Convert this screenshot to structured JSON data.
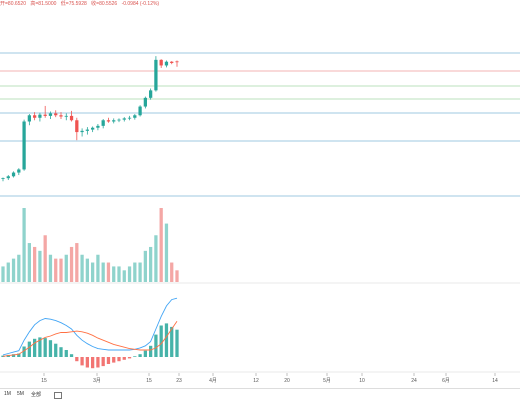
{
  "ohlc": {
    "open": "开=80.6520",
    "high": "高=81.5000",
    "low": "低=75.5928",
    "close": "收=80.5526",
    "change": "-0.0984 (-0.12%)"
  },
  "timeframes": [
    "1M",
    "5M",
    "全部"
  ],
  "colors": {
    "up": "#26a69a",
    "down": "#ef5350",
    "vol_up": "#8fd3cc",
    "vol_down": "#f4a7a5",
    "macd_line": "#42a5f5",
    "signal_line": "#ff7043"
  },
  "chart_data": [
    {
      "type": "candlestick",
      "x_tick_labels": [
        "15",
        "3月",
        "15",
        "23",
        "4月",
        "12",
        "20",
        "5月",
        "10",
        "24",
        "6月",
        "14"
      ],
      "horizontal_levels": [
        "blue",
        "red",
        "green",
        "blue",
        "blue",
        "blue"
      ],
      "candles": [
        {
          "o": 61.8,
          "h": 62.0,
          "l": 61.4,
          "c": 61.9
        },
        {
          "o": 61.9,
          "h": 62.4,
          "l": 61.6,
          "c": 62.2
        },
        {
          "o": 62.2,
          "h": 63.0,
          "l": 62.0,
          "c": 62.8
        },
        {
          "o": 62.8,
          "h": 63.5,
          "l": 62.4,
          "c": 63.3
        },
        {
          "o": 63.3,
          "h": 71.3,
          "l": 63.1,
          "c": 71.0
        },
        {
          "o": 71.0,
          "h": 72.2,
          "l": 70.4,
          "c": 72.0
        },
        {
          "o": 72.0,
          "h": 72.5,
          "l": 71.2,
          "c": 71.6
        },
        {
          "o": 71.6,
          "h": 72.4,
          "l": 71.0,
          "c": 72.1
        },
        {
          "o": 72.1,
          "h": 73.5,
          "l": 71.6,
          "c": 71.9
        },
        {
          "o": 71.9,
          "h": 72.6,
          "l": 71.4,
          "c": 72.3
        },
        {
          "o": 72.3,
          "h": 72.8,
          "l": 71.7,
          "c": 72.0
        },
        {
          "o": 72.0,
          "h": 72.5,
          "l": 71.4,
          "c": 71.8
        },
        {
          "o": 71.8,
          "h": 72.3,
          "l": 71.2,
          "c": 71.9
        },
        {
          "o": 71.9,
          "h": 72.7,
          "l": 71.0,
          "c": 71.2
        },
        {
          "o": 71.2,
          "h": 71.6,
          "l": 68.0,
          "c": 69.3
        },
        {
          "o": 69.3,
          "h": 69.9,
          "l": 68.6,
          "c": 69.5
        },
        {
          "o": 69.5,
          "h": 70.1,
          "l": 68.9,
          "c": 69.7
        },
        {
          "o": 69.7,
          "h": 70.2,
          "l": 69.3,
          "c": 70.0
        },
        {
          "o": 70.0,
          "h": 70.6,
          "l": 69.6,
          "c": 70.3
        },
        {
          "o": 70.3,
          "h": 71.4,
          "l": 69.9,
          "c": 71.2
        },
        {
          "o": 71.2,
          "h": 71.6,
          "l": 70.8,
          "c": 71.0
        },
        {
          "o": 71.0,
          "h": 71.5,
          "l": 70.7,
          "c": 71.2
        },
        {
          "o": 71.2,
          "h": 71.5,
          "l": 70.9,
          "c": 71.3
        },
        {
          "o": 71.3,
          "h": 71.7,
          "l": 71.0,
          "c": 71.5
        },
        {
          "o": 71.5,
          "h": 71.9,
          "l": 71.2,
          "c": 71.6
        },
        {
          "o": 71.6,
          "h": 72.2,
          "l": 71.3,
          "c": 72.0
        },
        {
          "o": 72.0,
          "h": 73.6,
          "l": 71.8,
          "c": 73.4
        },
        {
          "o": 73.4,
          "h": 75.0,
          "l": 73.1,
          "c": 74.8
        },
        {
          "o": 74.8,
          "h": 76.3,
          "l": 74.5,
          "c": 76.0
        },
        {
          "o": 76.0,
          "h": 81.5,
          "l": 75.8,
          "c": 80.9
        },
        {
          "o": 80.9,
          "h": 81.0,
          "l": 79.6,
          "c": 80.0
        },
        {
          "o": 80.0,
          "h": 80.8,
          "l": 79.7,
          "c": 80.6
        },
        {
          "o": 80.6,
          "h": 80.7,
          "l": 80.2,
          "c": 80.4
        },
        {
          "o": 80.65,
          "h": 80.8,
          "l": 79.8,
          "c": 80.55
        }
      ],
      "volume": [
        4,
        5,
        6,
        7,
        19,
        10,
        9,
        8,
        12,
        7,
        6,
        6,
        7,
        9,
        10,
        7,
        6,
        5,
        7,
        5,
        5,
        4,
        4,
        3,
        4,
        5,
        5,
        8,
        9,
        12,
        19,
        15,
        5,
        3
      ],
      "macd": {
        "histogram": [
          0.2,
          0.3,
          0.4,
          0.5,
          1.5,
          2.2,
          2.6,
          2.8,
          2.7,
          2.4,
          1.9,
          1.4,
          1.0,
          0.4,
          -0.6,
          -1.2,
          -1.5,
          -1.6,
          -1.5,
          -1.3,
          -1.0,
          -0.8,
          -0.6,
          -0.4,
          -0.2,
          0.1,
          0.4,
          0.9,
          1.6,
          3.2,
          4.5,
          4.8,
          4.3,
          3.9
        ],
        "macd_line": [
          0.3,
          0.5,
          0.7,
          0.9,
          2.4,
          3.6,
          4.6,
          5.2,
          5.5,
          5.4,
          5.2,
          4.9,
          4.5,
          4.0,
          3.1,
          2.4,
          1.9,
          1.5,
          1.2,
          1.1,
          1.0,
          1.0,
          1.0,
          1.0,
          1.0,
          1.1,
          1.3,
          1.6,
          2.2,
          4.0,
          5.8,
          7.3,
          8.2,
          8.4
        ],
        "signal_line": [
          0.1,
          0.2,
          0.3,
          0.4,
          0.9,
          1.4,
          2.0,
          2.4,
          2.8,
          3.0,
          3.3,
          3.5,
          3.5,
          3.6,
          3.7,
          3.6,
          3.4,
          3.1,
          2.7,
          2.4,
          2.1,
          1.8,
          1.6,
          1.4,
          1.2,
          1.1,
          1.0,
          1.0,
          1.0,
          1.3,
          1.9,
          2.9,
          4.0,
          5.1
        ]
      }
    }
  ]
}
